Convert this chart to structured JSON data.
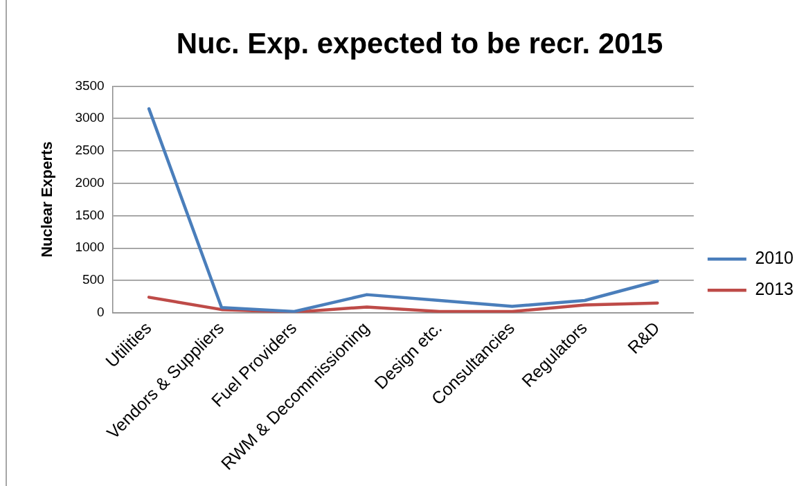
{
  "chart_data": {
    "type": "line",
    "title": "Nuc. Exp. expected to be recr. 2015",
    "ylabel": "Nuclear Experts",
    "categories": [
      "Utilities",
      "Vendors & Suppliers",
      "Fuel Providers",
      "RWM & Decommissioning",
      "Design etc.",
      "Consultancies",
      "Regulators",
      "R&D"
    ],
    "series": [
      {
        "name": "2010",
        "color": "#4a7ebb",
        "values": [
          3150,
          80,
          20,
          280,
          190,
          100,
          190,
          490
        ]
      },
      {
        "name": "2013",
        "color": "#be4b48",
        "values": [
          240,
          50,
          10,
          90,
          20,
          20,
          120,
          150
        ]
      }
    ],
    "ylim": [
      0,
      3500
    ],
    "yticks": [
      0,
      500,
      1000,
      1500,
      2000,
      2500,
      3000,
      3500
    ],
    "grid": "y",
    "legend": "right",
    "marker": "none"
  }
}
